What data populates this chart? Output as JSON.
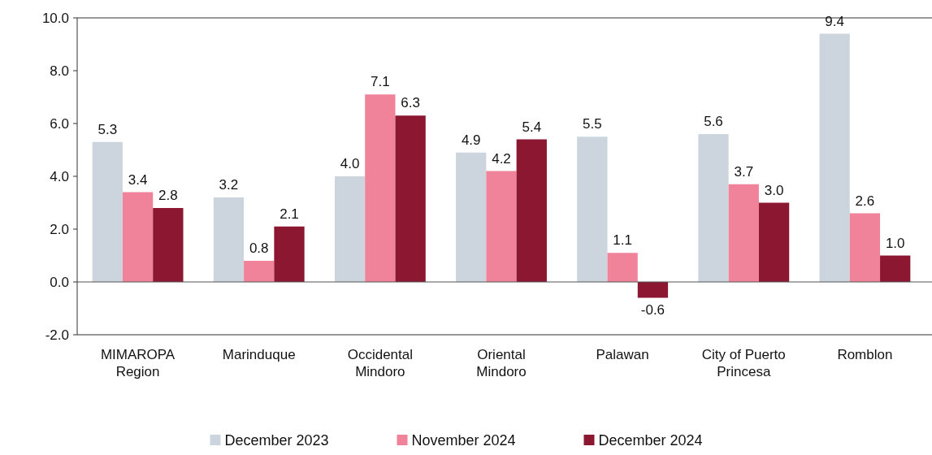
{
  "chart_data": {
    "type": "bar",
    "categories": [
      "MIMAROPA Region",
      "Marinduque",
      "Occidental Mindoro",
      "Oriental Mindoro",
      "Palawan",
      "City of Puerto Princesa",
      "Romblon"
    ],
    "series": [
      {
        "name": "December 2023",
        "color": "#ccd5de",
        "values": [
          5.3,
          3.2,
          4.0,
          4.9,
          5.5,
          5.6,
          9.4
        ],
        "value_labels": [
          "5.3",
          "3.2",
          "4.0",
          "4.9",
          "5.5",
          "5.6",
          "9.4"
        ]
      },
      {
        "name": "November 2024",
        "color": "#f08399",
        "values": [
          3.4,
          0.8,
          7.1,
          4.2,
          1.1,
          3.7,
          2.6
        ],
        "value_labels": [
          "3.4",
          "0.8",
          "7.1",
          "4.2",
          "1.1",
          "3.7",
          "2.6"
        ]
      },
      {
        "name": "December 2024",
        "color": "#8c1731",
        "values": [
          2.8,
          2.1,
          6.3,
          5.4,
          -0.6,
          3.0,
          1.0
        ],
        "value_labels": [
          "2.8",
          "2.1",
          "6.3",
          "5.4",
          "-0.6",
          "3.0",
          "1.0"
        ]
      }
    ],
    "ylim": [
      -2,
      10
    ],
    "yticks": [
      {
        "value": -2,
        "label": "-2.0"
      },
      {
        "value": 0,
        "label": "0.0"
      },
      {
        "value": 2,
        "label": "2.0"
      },
      {
        "value": 4,
        "label": "4.0"
      },
      {
        "value": 6,
        "label": "6.0"
      },
      {
        "value": 8,
        "label": "8.0"
      },
      {
        "value": 10,
        "label": "10.0"
      }
    ],
    "legend": "bottom"
  }
}
